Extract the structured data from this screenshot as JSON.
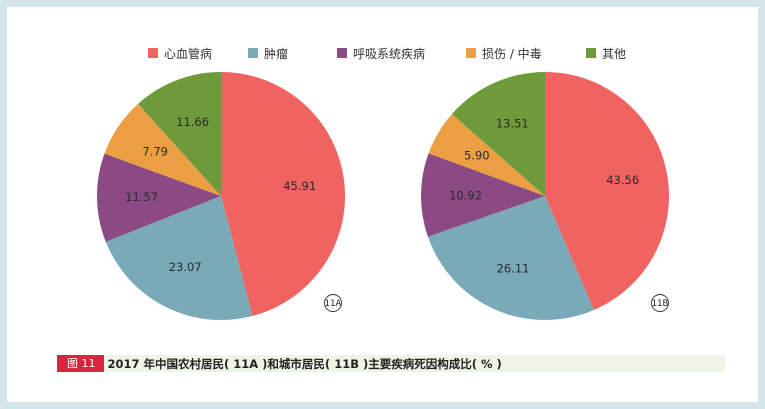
{
  "legend": {
    "items": [
      {
        "label": "心血管病",
        "color": "#ef6461"
      },
      {
        "label": "肿瘤",
        "color": "#7aaab7"
      },
      {
        "label": "呼吸系统疾病",
        "color": "#8c4a85"
      },
      {
        "label": "损伤 / 中毒",
        "color": "#eb9f42"
      },
      {
        "label": "其他",
        "color": "#6e9a3a"
      }
    ]
  },
  "caption": {
    "tag": "图 11",
    "text": "2017 年中国农村居民( 11A )和城市居民( 11B )主要疾病死因构成比( % )"
  },
  "chart_data": [
    {
      "type": "pie",
      "label": "11A",
      "categories": [
        "心血管病",
        "肿瘤",
        "呼吸系统疾病",
        "损伤 / 中毒",
        "其他"
      ],
      "values": [
        45.91,
        23.07,
        11.57,
        7.79,
        11.66
      ],
      "value_labels": [
        "45.91",
        "23.07",
        "11.57",
        "7.79",
        "11.66"
      ],
      "colors": [
        "#ef6461",
        "#7aaab7",
        "#8c4a85",
        "#eb9f42",
        "#6e9a3a"
      ],
      "start": "top, clockwise"
    },
    {
      "type": "pie",
      "label": "11B",
      "categories": [
        "心血管病",
        "肿瘤",
        "呼吸系统疾病",
        "损伤 / 中毒",
        "其他"
      ],
      "values": [
        43.56,
        26.11,
        10.92,
        5.9,
        13.51
      ],
      "value_labels": [
        "43.56",
        "26.11",
        "10.92",
        "5.90",
        "13.51"
      ],
      "colors": [
        "#ef6461",
        "#7aaab7",
        "#8c4a85",
        "#eb9f42",
        "#6e9a3a"
      ],
      "start": "top, clockwise"
    }
  ]
}
